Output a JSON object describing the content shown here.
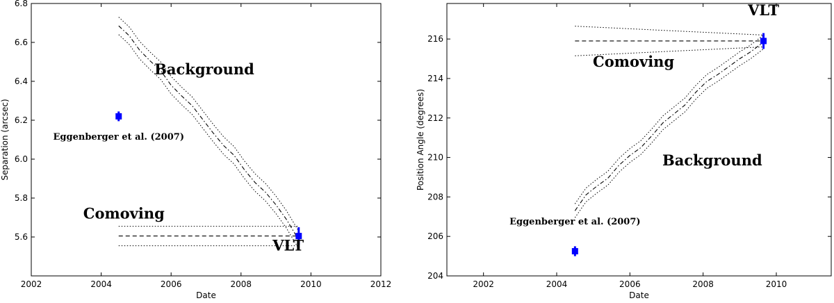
{
  "chart_data": [
    {
      "type": "scatter",
      "xlabel": "Date",
      "ylabel": "Separation (arcsec)",
      "xlim": [
        2002,
        2012
      ],
      "ylim": [
        5.4,
        6.8
      ],
      "xticks": [
        2002,
        2004,
        2006,
        2008,
        2010,
        2012
      ],
      "yticks": [
        5.6,
        5.8,
        6.0,
        6.2,
        6.4,
        6.6,
        6.8
      ],
      "ytick_labels": [
        "5.6",
        "5.8",
        "6.0",
        "6.2",
        "6.4",
        "6.6",
        "6.8"
      ],
      "grid": false,
      "marker_color": "#0000ff",
      "points": [
        {
          "x": 2004.5,
          "y": 6.22,
          "yerr": 0.025
        },
        {
          "x": 2009.65,
          "y": 5.605,
          "yerr": 0.045
        }
      ],
      "background_track": {
        "x": [
          2004.5,
          2004.8,
          2005.1,
          2005.4,
          2005.7,
          2006.0,
          2006.3,
          2006.6,
          2006.9,
          2007.2,
          2007.5,
          2007.8,
          2008.1,
          2008.4,
          2008.7,
          2009.0,
          2009.3,
          2009.65
        ],
        "y": [
          6.685,
          6.635,
          6.56,
          6.505,
          6.455,
          6.38,
          6.325,
          6.275,
          6.205,
          6.135,
          6.07,
          6.02,
          5.945,
          5.88,
          5.83,
          5.765,
          5.69,
          5.585
        ],
        "band": 0.045
      },
      "comoving_track": {
        "x": [
          2004.5,
          2009.65
        ],
        "y": 5.605,
        "band": 0.05
      },
      "annotations": [
        {
          "text": "Background",
          "x": 2006.95,
          "y": 6.435,
          "size": 21
        },
        {
          "text": "Comoving",
          "x": 2004.65,
          "y": 5.695,
          "size": 21
        },
        {
          "text": "VLT",
          "x": 2009.35,
          "y": 5.53,
          "size": 21
        },
        {
          "text": "Eggenberger et al. (2007)",
          "x": 2004.5,
          "y": 6.1,
          "size": 13
        }
      ]
    },
    {
      "type": "scatter",
      "xlabel": "Date",
      "ylabel": "Position Angle (degrees)",
      "xlim": [
        2001,
        2011.5
      ],
      "ylim": [
        204,
        217.8
      ],
      "xticks": [
        2002,
        2004,
        2006,
        2008,
        2010
      ],
      "yticks": [
        204,
        206,
        208,
        210,
        212,
        214,
        216
      ],
      "ytick_labels": [
        "204",
        "206",
        "208",
        "210",
        "212",
        "214",
        "216"
      ],
      "grid": false,
      "marker_color": "#0000ff",
      "points": [
        {
          "x": 2004.5,
          "y": 205.25,
          "yerr": 0.25
        },
        {
          "x": 2009.65,
          "y": 215.9,
          "yerr": 0.4
        }
      ],
      "background_track": {
        "x": [
          2004.5,
          2004.8,
          2005.1,
          2005.4,
          2005.7,
          2006.0,
          2006.3,
          2006.6,
          2006.9,
          2007.2,
          2007.5,
          2007.8,
          2008.1,
          2008.4,
          2008.7,
          2009.0,
          2009.3,
          2009.65
        ],
        "y": [
          207.3,
          208.1,
          208.55,
          208.95,
          209.6,
          210.1,
          210.5,
          211.1,
          211.75,
          212.2,
          212.65,
          213.3,
          213.85,
          214.2,
          214.6,
          215.0,
          215.35,
          215.85
        ],
        "band": 0.35
      },
      "comoving_track": {
        "x": [
          2004.5,
          2009.65
        ],
        "y": 215.9,
        "band_start": 0.75,
        "band_end": 0.3
      },
      "annotations": [
        {
          "text": "VLT",
          "x": 2009.65,
          "y": 217.2,
          "size": 21
        },
        {
          "text": "Comoving",
          "x": 2006.1,
          "y": 214.6,
          "size": 21
        },
        {
          "text": "Background",
          "x": 2008.25,
          "y": 209.6,
          "size": 21
        },
        {
          "text": "Eggenberger et al. (2007)",
          "x": 2004.5,
          "y": 206.6,
          "size": 13
        }
      ]
    }
  ]
}
